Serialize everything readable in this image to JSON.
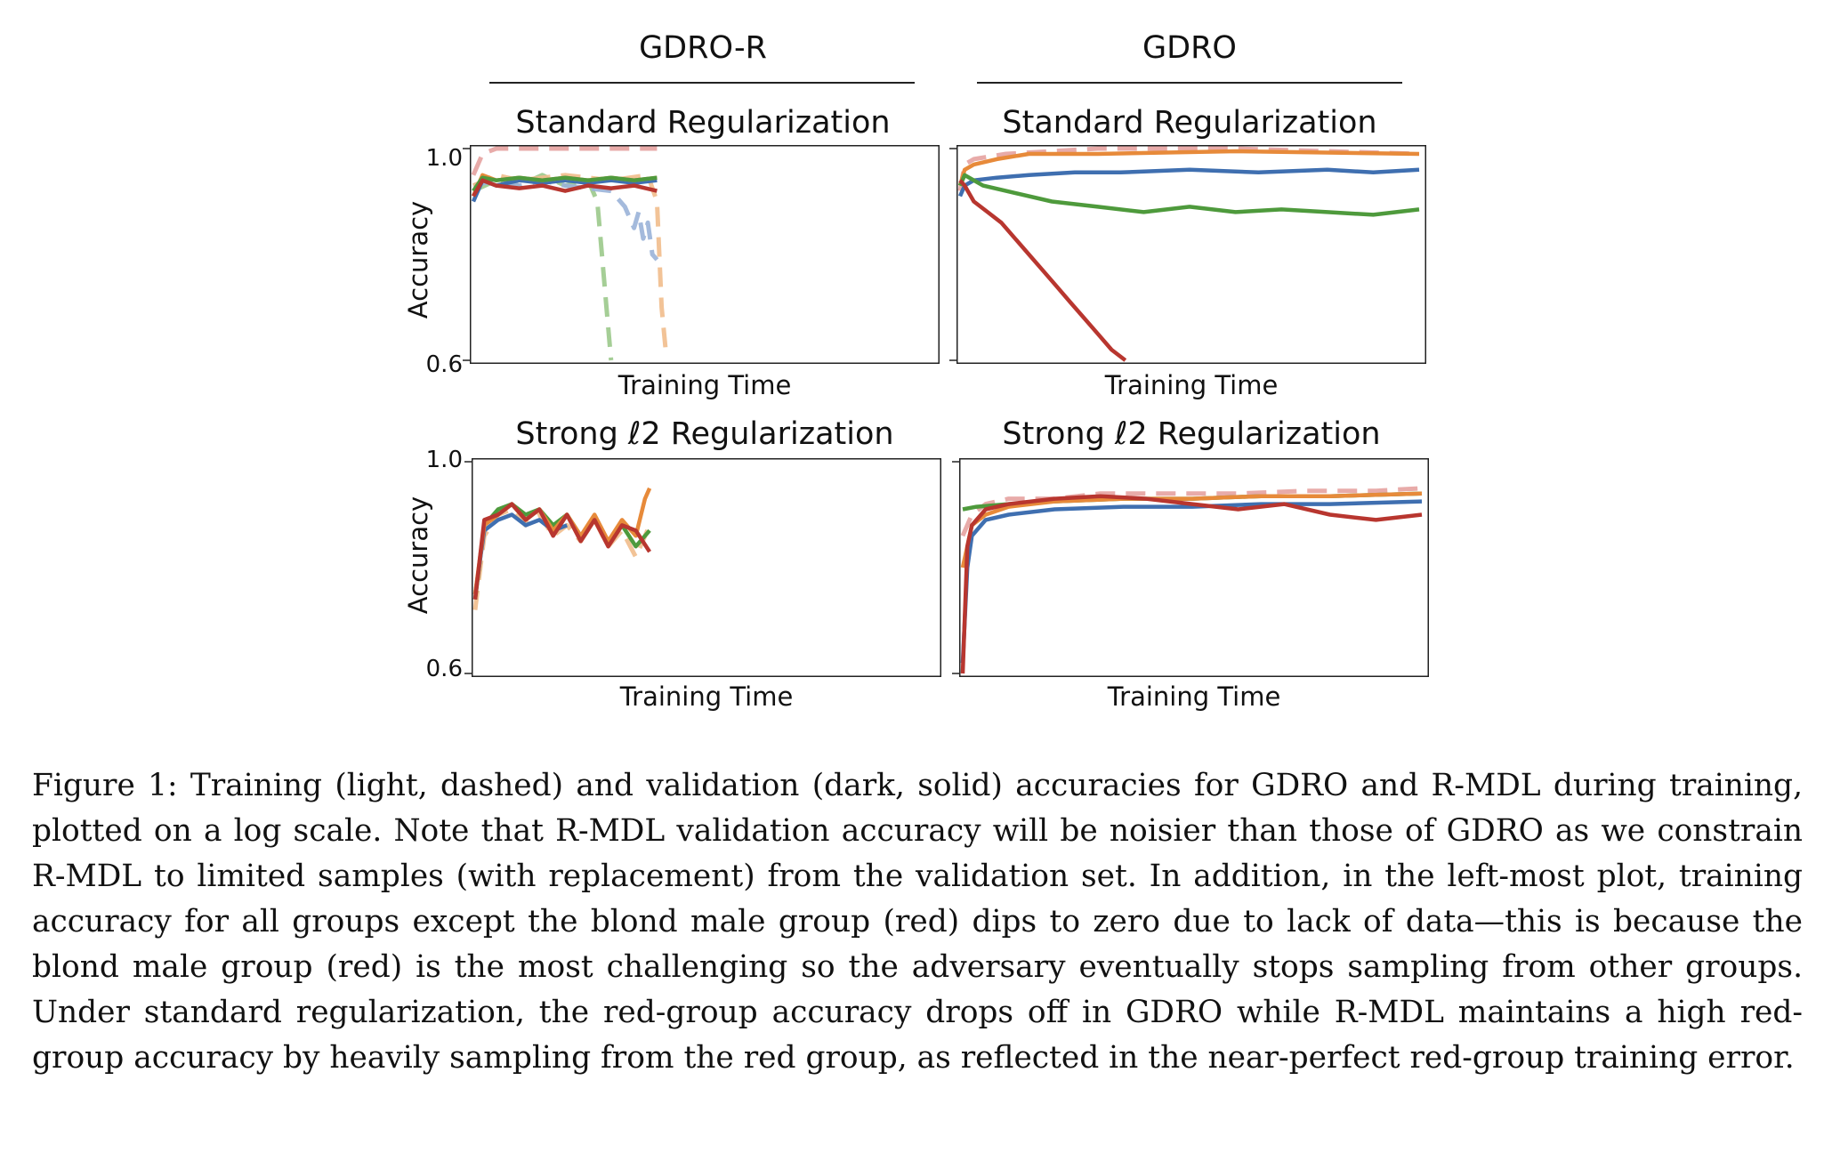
{
  "chart_data": {
    "type": "line",
    "x_scale": "log",
    "xlabel": "Training Time",
    "ylabel": "Accuracy",
    "ylim": [
      0.6,
      1.0
    ],
    "yticks": [
      "1.0",
      "0.6"
    ],
    "columns": [
      "GDRO-R",
      "GDRO"
    ],
    "series_colors": {
      "blue": "#3f6fb0",
      "orange": "#e78a3a",
      "green": "#4e9a3c",
      "red": "#b8362f",
      "pink": "#e6a2a0"
    },
    "panels": [
      {
        "id": "gdro-r-standard",
        "column": "GDRO-R",
        "title": "Standard Regularization",
        "series": [
          {
            "name": "red (train)",
            "color": "#e6a2a0",
            "style": "dashed",
            "x": [
              0,
              0.02,
              0.05,
              0.4
            ],
            "y": [
              0.95,
              0.99,
              1.0,
              1.0
            ]
          },
          {
            "name": "green (train)",
            "color": "#9bc98b",
            "style": "dashed",
            "x": [
              0,
              0.05,
              0.1,
              0.15,
              0.2,
              0.25,
              0.27,
              0.28,
              0.29,
              0.3
            ],
            "y": [
              0.92,
              0.94,
              0.93,
              0.95,
              0.93,
              0.94,
              0.9,
              0.8,
              0.7,
              0.6
            ]
          },
          {
            "name": "blue (train)",
            "color": "#9ab3d8",
            "style": "dashed",
            "x": [
              0,
              0.05,
              0.1,
              0.15,
              0.2,
              0.3,
              0.33,
              0.35,
              0.36,
              0.37,
              0.38,
              0.39,
              0.4
            ],
            "y": [
              0.93,
              0.94,
              0.93,
              0.94,
              0.93,
              0.92,
              0.89,
              0.85,
              0.88,
              0.83,
              0.86,
              0.8,
              0.79
            ]
          },
          {
            "name": "orange (train)",
            "color": "#f1bc8c",
            "style": "dashed",
            "x": [
              0,
              0.05,
              0.1,
              0.2,
              0.3,
              0.38,
              0.4,
              0.41,
              0.42
            ],
            "y": [
              0.93,
              0.95,
              0.94,
              0.95,
              0.94,
              0.95,
              0.9,
              0.7,
              0.61
            ]
          },
          {
            "name": "blue (val)",
            "color": "#3f6fb0",
            "style": "solid",
            "x": [
              0,
              0.02,
              0.05,
              0.1,
              0.15,
              0.2,
              0.25,
              0.3,
              0.35,
              0.4
            ],
            "y": [
              0.9,
              0.94,
              0.93,
              0.94,
              0.935,
              0.94,
              0.935,
              0.94,
              0.935,
              0.94
            ]
          },
          {
            "name": "orange (val)",
            "color": "#e78a3a",
            "style": "solid",
            "x": [
              0,
              0.02,
              0.05,
              0.1,
              0.15,
              0.2,
              0.25,
              0.3,
              0.35,
              0.4
            ],
            "y": [
              0.91,
              0.95,
              0.94,
              0.945,
              0.94,
              0.945,
              0.94,
              0.945,
              0.94,
              0.945
            ]
          },
          {
            "name": "green (val)",
            "color": "#4e9a3c",
            "style": "solid",
            "x": [
              0,
              0.02,
              0.05,
              0.1,
              0.15,
              0.2,
              0.25,
              0.3,
              0.35,
              0.4
            ],
            "y": [
              0.92,
              0.945,
              0.94,
              0.945,
              0.94,
              0.945,
              0.94,
              0.945,
              0.94,
              0.945
            ]
          },
          {
            "name": "red (val)",
            "color": "#b8362f",
            "style": "solid",
            "x": [
              0,
              0.02,
              0.05,
              0.1,
              0.15,
              0.2,
              0.25,
              0.3,
              0.35,
              0.4
            ],
            "y": [
              0.91,
              0.94,
              0.93,
              0.925,
              0.93,
              0.92,
              0.93,
              0.925,
              0.93,
              0.92
            ]
          }
        ]
      },
      {
        "id": "gdro-standard",
        "column": "GDRO",
        "title": "Standard Regularization",
        "series": [
          {
            "name": "pink (train)",
            "color": "#e6a2a0",
            "style": "dashed",
            "x": [
              0,
              0.01,
              0.03,
              0.1,
              0.3,
              0.6,
              1.0
            ],
            "y": [
              0.92,
              0.97,
              0.98,
              0.99,
              1.0,
              1.0,
              0.99
            ]
          },
          {
            "name": "orange (val)",
            "color": "#e78a3a",
            "style": "solid",
            "x": [
              0,
              0.01,
              0.03,
              0.08,
              0.15,
              0.3,
              0.6,
              1.0
            ],
            "y": [
              0.93,
              0.96,
              0.97,
              0.98,
              0.99,
              0.99,
              0.995,
              0.99
            ]
          },
          {
            "name": "blue (val)",
            "color": "#3f6fb0",
            "style": "solid",
            "x": [
              0,
              0.01,
              0.03,
              0.08,
              0.15,
              0.25,
              0.35,
              0.5,
              0.65,
              0.8,
              0.9,
              1.0
            ],
            "y": [
              0.91,
              0.93,
              0.94,
              0.945,
              0.95,
              0.955,
              0.955,
              0.96,
              0.955,
              0.96,
              0.955,
              0.96
            ]
          },
          {
            "name": "green (val)",
            "color": "#4e9a3c",
            "style": "solid",
            "x": [
              0,
              0.01,
              0.05,
              0.1,
              0.2,
              0.3,
              0.4,
              0.5,
              0.6,
              0.7,
              0.8,
              0.9,
              1.0
            ],
            "y": [
              0.93,
              0.95,
              0.93,
              0.92,
              0.9,
              0.89,
              0.88,
              0.89,
              0.88,
              0.885,
              0.88,
              0.875,
              0.885
            ]
          },
          {
            "name": "red (val)",
            "color": "#b8362f",
            "style": "solid",
            "x": [
              0,
              0.01,
              0.03,
              0.06,
              0.09,
              0.12,
              0.15,
              0.18,
              0.21,
              0.24,
              0.27,
              0.3,
              0.33,
              0.36
            ],
            "y": [
              0.94,
              0.93,
              0.9,
              0.88,
              0.86,
              0.83,
              0.8,
              0.77,
              0.74,
              0.71,
              0.68,
              0.65,
              0.62,
              0.6
            ]
          }
        ]
      },
      {
        "id": "gdro-r-strong",
        "column": "GDRO-R",
        "title": "Strong ℓ2 Regularization",
        "series": [
          {
            "name": "orange (train)",
            "color": "#f1bc8c",
            "style": "dashed",
            "x": [
              0,
              0.02,
              0.05,
              0.08,
              0.11,
              0.14,
              0.17,
              0.2,
              0.23,
              0.26,
              0.29,
              0.32,
              0.35,
              0.38
            ],
            "y": [
              0.72,
              0.86,
              0.9,
              0.91,
              0.88,
              0.9,
              0.86,
              0.88,
              0.85,
              0.89,
              0.84,
              0.87,
              0.82,
              0.88
            ]
          },
          {
            "name": "green (val)",
            "color": "#4e9a3c",
            "style": "solid",
            "x": [
              0,
              0.02,
              0.05,
              0.08,
              0.11,
              0.14,
              0.17,
              0.2,
              0.23,
              0.26,
              0.29,
              0.32,
              0.35,
              0.38
            ],
            "y": [
              0.74,
              0.88,
              0.91,
              0.92,
              0.9,
              0.91,
              0.88,
              0.9,
              0.86,
              0.89,
              0.85,
              0.88,
              0.84,
              0.87
            ]
          },
          {
            "name": "blue (val)",
            "color": "#3f6fb0",
            "style": "solid",
            "x": [
              0,
              0.02,
              0.05,
              0.08,
              0.11,
              0.14,
              0.17,
              0.2
            ],
            "y": [
              0.75,
              0.87,
              0.89,
              0.9,
              0.88,
              0.89,
              0.87,
              0.88
            ]
          },
          {
            "name": "orange (val)",
            "color": "#e78a3a",
            "style": "solid",
            "x": [
              0,
              0.02,
              0.05,
              0.08,
              0.11,
              0.14,
              0.17,
              0.2,
              0.23,
              0.26,
              0.29,
              0.32,
              0.35,
              0.37,
              0.38
            ],
            "y": [
              0.75,
              0.88,
              0.9,
              0.92,
              0.89,
              0.91,
              0.87,
              0.9,
              0.86,
              0.9,
              0.85,
              0.89,
              0.86,
              0.93,
              0.95
            ]
          },
          {
            "name": "red (val)",
            "color": "#b8362f",
            "style": "solid",
            "x": [
              0,
              0.02,
              0.05,
              0.08,
              0.11,
              0.14,
              0.17,
              0.2,
              0.23,
              0.26,
              0.29,
              0.32,
              0.35,
              0.38
            ],
            "y": [
              0.74,
              0.89,
              0.9,
              0.92,
              0.89,
              0.91,
              0.86,
              0.9,
              0.85,
              0.89,
              0.84,
              0.88,
              0.87,
              0.83
            ]
          }
        ]
      },
      {
        "id": "gdro-strong",
        "column": "GDRO",
        "title": "Strong ℓ2 Regularization",
        "series": [
          {
            "name": "pink (train)",
            "color": "#e6a2a0",
            "style": "dashed",
            "x": [
              0,
              0.02,
              0.05,
              0.1,
              0.2,
              0.3,
              0.45,
              0.6,
              0.75,
              0.9,
              1.0
            ],
            "y": [
              0.86,
              0.9,
              0.92,
              0.93,
              0.93,
              0.94,
              0.94,
              0.94,
              0.945,
              0.945,
              0.95
            ]
          },
          {
            "name": "green (val)",
            "color": "#4e9a3c",
            "style": "solid",
            "x": [
              0,
              0.03,
              0.1,
              0.2,
              0.35,
              0.5,
              0.65,
              0.8,
              1.0
            ],
            "y": [
              0.91,
              0.915,
              0.92,
              0.925,
              0.93,
              0.93,
              0.935,
              0.935,
              0.94
            ]
          },
          {
            "name": "orange (val)",
            "color": "#e78a3a",
            "style": "solid",
            "x": [
              0,
              0.02,
              0.05,
              0.1,
              0.2,
              0.35,
              0.5,
              0.65,
              0.8,
              1.0
            ],
            "y": [
              0.8,
              0.88,
              0.9,
              0.915,
              0.925,
              0.93,
              0.93,
              0.935,
              0.935,
              0.94
            ]
          },
          {
            "name": "blue (val)",
            "color": "#3f6fb0",
            "style": "solid",
            "x": [
              0,
              0.01,
              0.02,
              0.05,
              0.1,
              0.2,
              0.35,
              0.5,
              0.65,
              0.8,
              1.0
            ],
            "y": [
              0.62,
              0.8,
              0.86,
              0.89,
              0.9,
              0.91,
              0.915,
              0.915,
              0.92,
              0.92,
              0.925
            ]
          },
          {
            "name": "red (val)",
            "color": "#b8362f",
            "style": "solid",
            "x": [
              0,
              0.01,
              0.02,
              0.05,
              0.1,
              0.2,
              0.3,
              0.4,
              0.5,
              0.6,
              0.7,
              0.8,
              0.9,
              1.0
            ],
            "y": [
              0.6,
              0.84,
              0.88,
              0.91,
              0.92,
              0.93,
              0.935,
              0.93,
              0.92,
              0.91,
              0.92,
              0.9,
              0.89,
              0.9
            ]
          }
        ]
      }
    ]
  },
  "caption": "Figure 1:   Training (light, dashed) and validation (dark, solid) accuracies for GDRO and R-MDL during training, plotted on a log scale. Note that R-MDL validation accuracy will be noisier than those of GDRO as we constrain R-MDL to limited samples (with replacement) from the validation set. In addition, in the left-most plot, training accuracy for all groups except the blond male group (red) dips to zero due to lack of data—this is because the blond male group (red) is the most challenging so the adversary eventually stops sampling from other groups. Under standard regularization, the red-group accuracy drops off in GDRO while R-MDL maintains a high red-group accuracy by heavily sampling from the red group, as reflected in the near-perfect red-group training error."
}
